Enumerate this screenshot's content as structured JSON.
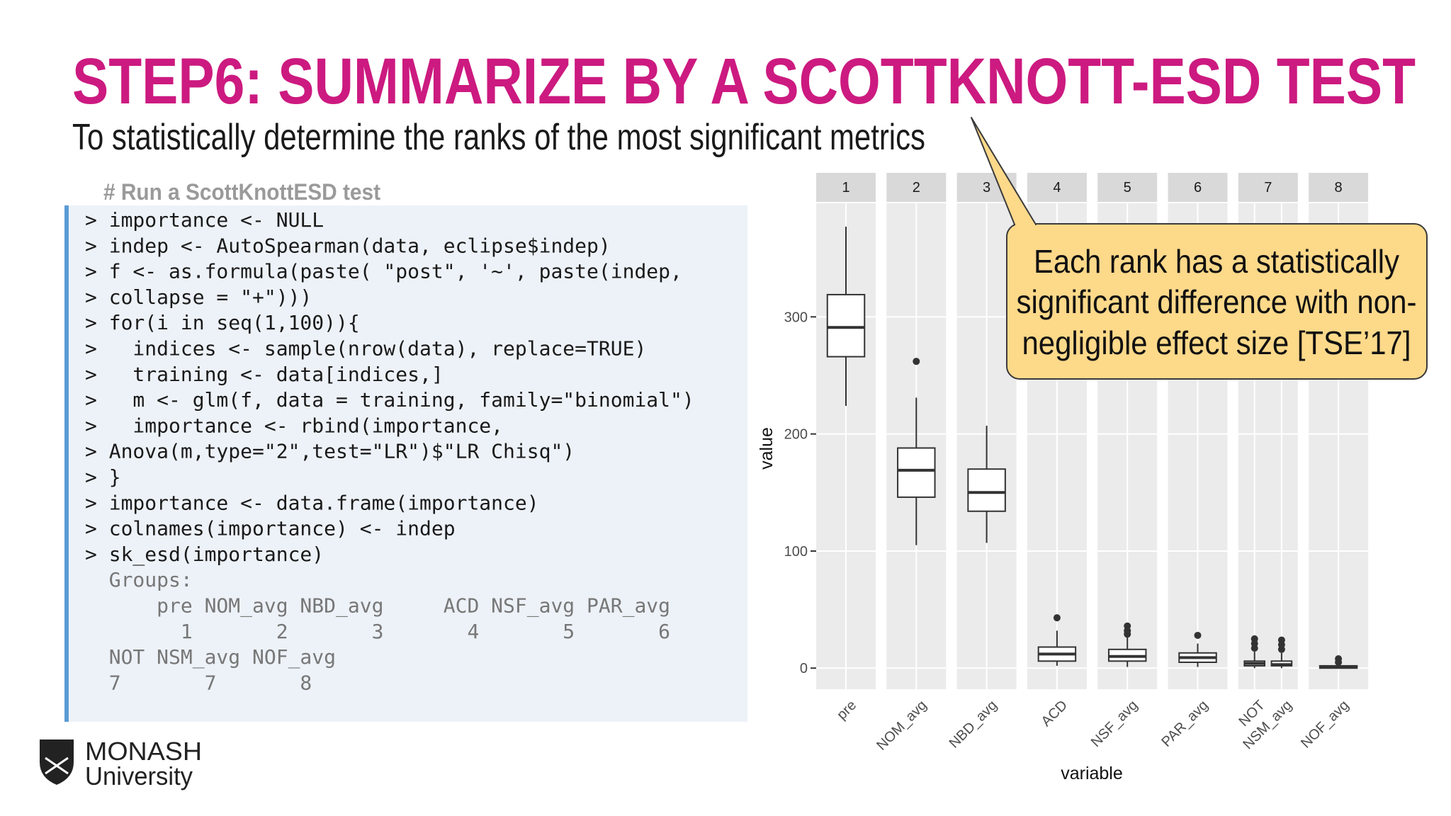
{
  "header": {
    "title": "STEP6: SUMMARIZE BY A SCOTTKNOTT-ESD TEST",
    "subtitle": "To statistically determine the ranks of the most significant metrics"
  },
  "code": {
    "comment": "# Run a ScottKnottESD test",
    "lines": [
      "> importance <- NULL",
      "> indep <- AutoSpearman(data, eclipse$indep)",
      "> f <- as.formula(paste( \"post\", '~', paste(indep,",
      "> collapse = \"+\")))",
      "> for(i in seq(1,100)){",
      ">   indices <- sample(nrow(data), replace=TRUE)",
      ">   training <- data[indices,]",
      ">   m <- glm(f, data = training, family=\"binomial\")",
      ">   importance <- rbind(importance,",
      "> Anova(m,type=\"2\",test=\"LR\")$\"LR Chisq\")",
      "> }",
      "> importance <- data.frame(importance)",
      "> colnames(importance) <- indep",
      "> sk_esd(importance)"
    ],
    "output": [
      "  Groups:",
      "      pre NOM_avg NBD_avg     ACD NSF_avg PAR_avg",
      "        1       2       3       4       5       6",
      "  NOT NSM_avg NOF_avg",
      "  7       7       8"
    ]
  },
  "callout": {
    "lines": [
      "Each rank has a statistically",
      "significant difference with non-",
      "negligible effect size [TSE’17]"
    ]
  },
  "logo": {
    "name": "MONASH",
    "subtitle": "University"
  },
  "chart_data": {
    "type": "boxplot",
    "x_label": "variable",
    "y_label": "value",
    "ylim": [
      -18,
      397
    ],
    "yticks": [
      0,
      100,
      200,
      300
    ],
    "grid": true,
    "box_fill": "#ffffff",
    "box_stroke": "#333333",
    "panel_color": "#ebebeb",
    "strip_color": "#d9d9d9",
    "facets": [
      {
        "label": "1",
        "boxes": [
          {
            "category": "pre",
            "whisker_low": 224,
            "q1": 266,
            "median": 291,
            "q3": 319,
            "whisker_high": 377,
            "outliers": []
          }
        ]
      },
      {
        "label": "2",
        "boxes": [
          {
            "category": "NOM_avg",
            "whisker_low": 105,
            "q1": 146,
            "median": 169,
            "q3": 188,
            "whisker_high": 231,
            "outliers": [
              262
            ]
          }
        ]
      },
      {
        "label": "3",
        "boxes": [
          {
            "category": "NBD_avg",
            "whisker_low": 107,
            "q1": 134,
            "median": 150,
            "q3": 170,
            "whisker_high": 207,
            "outliers": []
          }
        ]
      },
      {
        "label": "4",
        "boxes": [
          {
            "category": "ACD",
            "whisker_low": 2,
            "q1": 6,
            "median": 12,
            "q3": 18,
            "whisker_high": 32,
            "outliers": [
              43
            ]
          }
        ]
      },
      {
        "label": "5",
        "boxes": [
          {
            "category": "NSF_avg",
            "whisker_low": 1,
            "q1": 6,
            "median": 10,
            "q3": 16,
            "whisker_high": 27,
            "outliers": [
              36,
              32,
              29
            ]
          }
        ]
      },
      {
        "label": "6",
        "boxes": [
          {
            "category": "PAR_avg",
            "whisker_low": 1,
            "q1": 5,
            "median": 9,
            "q3": 13,
            "whisker_high": 21,
            "outliers": [
              28
            ]
          }
        ]
      },
      {
        "label": "7",
        "boxes": [
          {
            "category": "NOT",
            "whisker_low": 0,
            "q1": 2,
            "median": 4,
            "q3": 6,
            "whisker_high": 14,
            "outliers": [
              25,
              21,
              17
            ]
          },
          {
            "category": "NSM_avg",
            "whisker_low": 0,
            "q1": 2,
            "median": 3,
            "q3": 6,
            "whisker_high": 13,
            "outliers": [
              24,
              20,
              16
            ]
          }
        ]
      },
      {
        "label": "8",
        "boxes": [
          {
            "category": "NOF_avg",
            "whisker_low": 0,
            "q1": 0,
            "median": 1,
            "q3": 2,
            "whisker_high": 2,
            "outliers": [
              8,
              5
            ]
          }
        ]
      }
    ]
  }
}
